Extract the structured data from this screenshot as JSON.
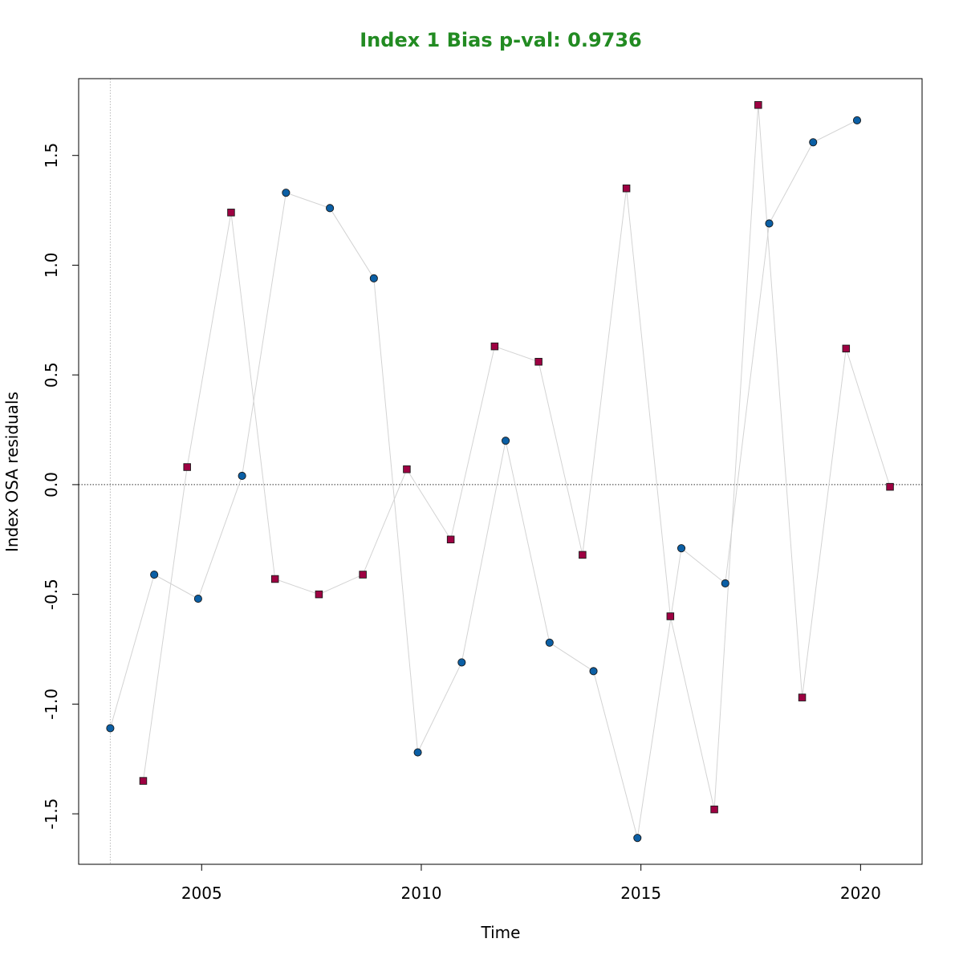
{
  "colors": {
    "title": "#228B22",
    "connector": "#d3d3d3",
    "circle_fill": "#0b5fa5",
    "square_fill": "#9e0142",
    "marker_stroke": "#1a1a1a",
    "zero_line": "#333333",
    "first_year_line": "#b8b8b8"
  },
  "chart_data": {
    "type": "scatter",
    "title": "Index 1 Bias p-val: 0.9736",
    "xlabel": "Time",
    "ylabel": "Index OSA residuals",
    "xlim": [
      2002.2,
      2021.4
    ],
    "ylim": [
      -1.73,
      1.85
    ],
    "x_ticks": [
      2005,
      2010,
      2015,
      2020
    ],
    "x_tick_labels": [
      "2005",
      "2010",
      "2015",
      "2020"
    ],
    "y_ticks": [
      -1.5,
      -1.0,
      -0.5,
      0.0,
      0.5,
      1.0,
      1.5
    ],
    "y_tick_labels": [
      "-1.5",
      "-1.0",
      "-0.5",
      "0.0",
      "0.5",
      "1.0",
      "1.5"
    ],
    "reference_lines": [
      {
        "orientation": "horizontal",
        "value": 0.0,
        "style": "dotted"
      },
      {
        "orientation": "vertical",
        "value": 2002.92,
        "style": "dotted"
      }
    ],
    "grid": false,
    "series": [
      {
        "marker": "circle",
        "points": [
          {
            "x": 2002.92,
            "y": -1.11
          },
          {
            "x": 2003.92,
            "y": -0.41
          },
          {
            "x": 2004.92,
            "y": -0.52
          },
          {
            "x": 2005.92,
            "y": 0.04
          },
          {
            "x": 2006.92,
            "y": 1.33
          },
          {
            "x": 2007.92,
            "y": 1.26
          },
          {
            "x": 2008.92,
            "y": 0.94
          },
          {
            "x": 2009.92,
            "y": -1.22
          },
          {
            "x": 2010.92,
            "y": -0.81
          },
          {
            "x": 2011.92,
            "y": 0.2
          },
          {
            "x": 2012.92,
            "y": -0.72
          },
          {
            "x": 2013.92,
            "y": -0.85
          },
          {
            "x": 2014.92,
            "y": -1.61
          },
          {
            "x": 2015.92,
            "y": -0.29
          },
          {
            "x": 2016.92,
            "y": -0.45
          },
          {
            "x": 2017.92,
            "y": 1.19
          },
          {
            "x": 2018.92,
            "y": 1.56
          },
          {
            "x": 2019.92,
            "y": 1.66
          }
        ]
      },
      {
        "marker": "square",
        "points": [
          {
            "x": 2003.67,
            "y": -1.35
          },
          {
            "x": 2004.67,
            "y": 0.08
          },
          {
            "x": 2005.67,
            "y": 1.24
          },
          {
            "x": 2006.67,
            "y": -0.43
          },
          {
            "x": 2007.67,
            "y": -0.5
          },
          {
            "x": 2008.67,
            "y": -0.41
          },
          {
            "x": 2009.67,
            "y": 0.07
          },
          {
            "x": 2010.67,
            "y": -0.25
          },
          {
            "x": 2011.67,
            "y": 0.63
          },
          {
            "x": 2012.67,
            "y": 0.56
          },
          {
            "x": 2013.67,
            "y": -0.32
          },
          {
            "x": 2014.67,
            "y": 1.35
          },
          {
            "x": 2015.67,
            "y": -0.6
          },
          {
            "x": 2016.67,
            "y": -1.48
          },
          {
            "x": 2017.67,
            "y": 1.73
          },
          {
            "x": 2018.67,
            "y": -0.97
          },
          {
            "x": 2019.67,
            "y": 0.62
          },
          {
            "x": 2020.67,
            "y": -0.01
          }
        ]
      }
    ]
  }
}
